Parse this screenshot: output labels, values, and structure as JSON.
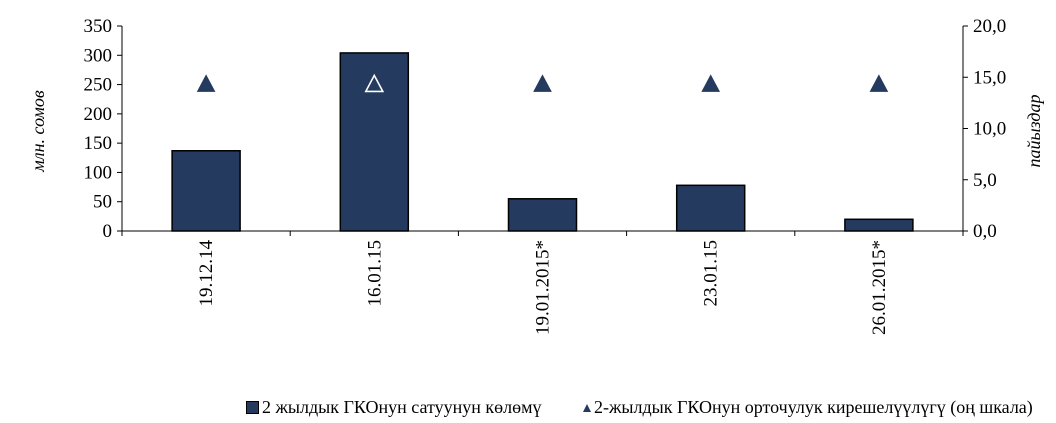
{
  "chart_data": {
    "type": "bar",
    "categories": [
      "19.12.14",
      "16.01.15",
      "19.01.2015*",
      "23.01.15",
      "26.01.2015*"
    ],
    "ylabel": "млн. сомов",
    "y2label": "пайыздар",
    "ylim": [
      0,
      350
    ],
    "y2lim": [
      0,
      20
    ],
    "yticks": [
      "0",
      "50",
      "100",
      "150",
      "200",
      "250",
      "300",
      "350"
    ],
    "y2ticks": [
      "0,0",
      "5,0",
      "10,0",
      "15,0",
      "20,0"
    ],
    "series": [
      {
        "name": "2 жылдык ГКОнун сатуунун көлөмү",
        "type": "bar",
        "axis": "left",
        "color": "#243a5e",
        "values": [
          137,
          304,
          55,
          78,
          20
        ]
      },
      {
        "name": "2-жылдык ГКОнун орточулук кирешелүүлүгү (оң шкала)",
        "type": "marker",
        "marker": "triangle",
        "axis": "right",
        "color": "#243a5e",
        "values": [
          14.4,
          14.4,
          14.4,
          14.4,
          14.4
        ],
        "hollow_index": 1
      }
    ],
    "grid": false,
    "legend_position": "bottom"
  }
}
